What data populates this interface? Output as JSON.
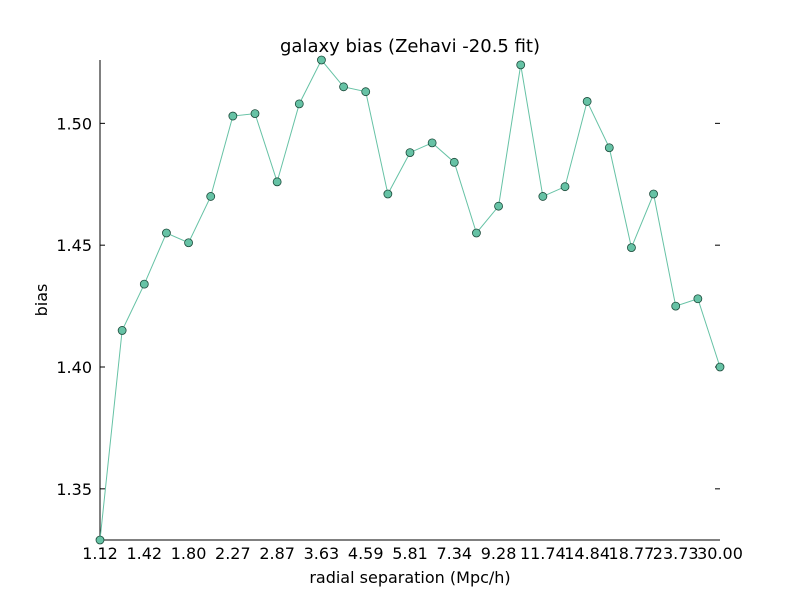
{
  "chart_data": {
    "type": "line",
    "title": "galaxy bias (Zehavi -20.5 fit)",
    "xlabel": "radial separation (Mpc/h)",
    "ylabel": "bias",
    "x_tick_labels": [
      "1.12",
      "1.42",
      "1.80",
      "2.27",
      "2.87",
      "3.63",
      "4.59",
      "5.81",
      "7.34",
      "9.28",
      "11.74",
      "14.84",
      "18.77",
      "23.73",
      "30.00"
    ],
    "y_ticks": [
      1.35,
      1.4,
      1.45,
      1.5
    ],
    "y_tick_labels": [
      "1.35",
      "1.40",
      "1.45",
      "1.50"
    ],
    "ylim": [
      1.329,
      1.526
    ],
    "grid": false,
    "colors": {
      "line": "#66c2a5",
      "marker_edge": "#1b4a3a"
    },
    "series": [
      {
        "x": [
          1.12,
          1.26,
          1.42,
          1.6,
          1.8,
          2.02,
          2.27,
          2.55,
          2.87,
          3.23,
          3.63,
          4.08,
          4.59,
          5.16,
          5.81,
          6.53,
          7.34,
          8.26,
          9.28,
          10.44,
          11.74,
          13.2,
          14.84,
          16.69,
          18.77,
          21.1,
          23.73,
          26.68,
          30.0
        ],
        "values": [
          1.329,
          1.415,
          1.434,
          1.455,
          1.451,
          1.47,
          1.503,
          1.504,
          1.476,
          1.508,
          1.526,
          1.515,
          1.513,
          1.471,
          1.488,
          1.492,
          1.484,
          1.455,
          1.466,
          1.524,
          1.47,
          1.474,
          1.509,
          1.49,
          1.449,
          1.471,
          1.425,
          1.428,
          1.4
        ]
      }
    ]
  }
}
